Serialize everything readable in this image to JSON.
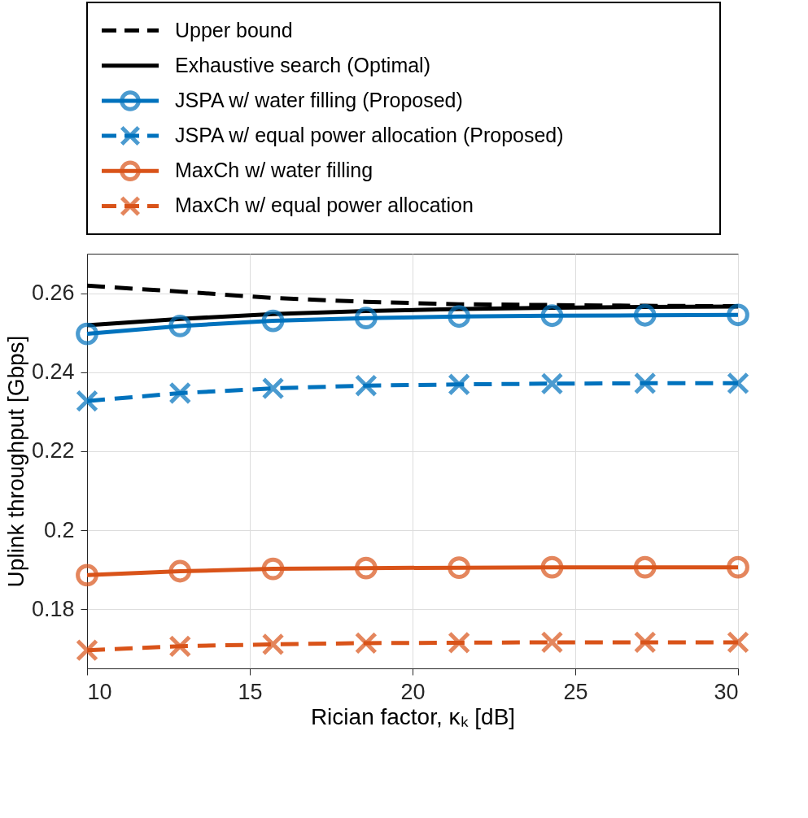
{
  "chart_data": {
    "type": "line",
    "xlabel": "Rician factor, κₖ [dB]",
    "ylabel": "Uplink throughput [Gbps]",
    "x": [
      10,
      12.857,
      15.714,
      18.571,
      21.429,
      24.286,
      27.143,
      30
    ],
    "series": [
      {
        "name": "Upper bound",
        "color": "#000000",
        "line_style": "dashed",
        "marker": "none",
        "values": [
          0.2619,
          0.2604,
          0.2588,
          0.2578,
          0.2572,
          0.257,
          0.2568,
          0.2567
        ]
      },
      {
        "name": "Exhaustive search (Optimal)",
        "color": "#000000",
        "line_style": "solid",
        "marker": "none",
        "values": [
          0.2519,
          0.2535,
          0.2547,
          0.2555,
          0.256,
          0.2563,
          0.2565,
          0.2566
        ]
      },
      {
        "name": "JSPA w/ water filling (Proposed)",
        "color": "#0072bd",
        "line_style": "solid",
        "marker": "circle",
        "values": [
          0.2497,
          0.2517,
          0.253,
          0.2537,
          0.2541,
          0.2543,
          0.2544,
          0.2545
        ]
      },
      {
        "name": "JSPA w/ equal power allocation (Proposed)",
        "color": "#0072bd",
        "line_style": "dashed",
        "marker": "cross",
        "values": [
          0.2327,
          0.2347,
          0.2359,
          0.2366,
          0.2369,
          0.2371,
          0.2372,
          0.2372
        ]
      },
      {
        "name": "MaxCh w/ water filling",
        "color": "#d95319",
        "line_style": "solid",
        "marker": "circle",
        "values": [
          0.1886,
          0.1896,
          0.1902,
          0.1904,
          0.1905,
          0.1906,
          0.1906,
          0.1906
        ]
      },
      {
        "name": "MaxCh w/ equal power allocation",
        "color": "#d95319",
        "line_style": "dashed",
        "marker": "cross",
        "values": [
          0.1696,
          0.1706,
          0.1711,
          0.1714,
          0.1715,
          0.1716,
          0.1716,
          0.1716
        ]
      }
    ],
    "xlim": [
      10,
      30
    ],
    "xticks": [
      10,
      15,
      20,
      25,
      30
    ],
    "ylim": [
      0.165,
      0.27
    ],
    "yticks": [
      0.18,
      0.2,
      0.22,
      0.24,
      0.26
    ],
    "grid": true,
    "legend": "top"
  }
}
